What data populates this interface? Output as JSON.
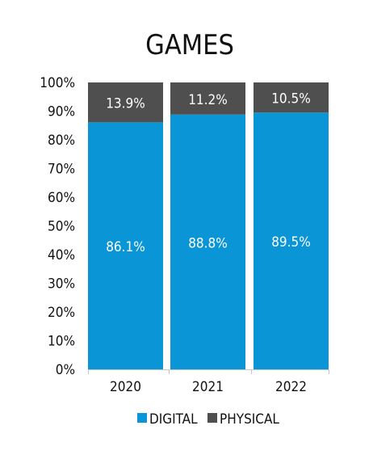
{
  "chart_data": {
    "type": "bar",
    "stacked": true,
    "title": "GAMES",
    "categories": [
      "2020",
      "2021",
      "2022"
    ],
    "series": [
      {
        "name": "DIGITAL",
        "color": "#0995d6",
        "values": [
          86.1,
          88.8,
          89.5
        ],
        "labels": [
          "86.1%",
          "88.8%",
          "89.5%"
        ]
      },
      {
        "name": "PHYSICAL",
        "color": "#4f4f4f",
        "values": [
          13.9,
          11.2,
          10.5
        ],
        "labels": [
          "13.9%",
          "11.2%",
          "10.5%"
        ]
      }
    ],
    "ylim": [
      0,
      100
    ],
    "yticks": [
      "0%",
      "10%",
      "20%",
      "30%",
      "40%",
      "50%",
      "60%",
      "70%",
      "80%",
      "90%",
      "100%"
    ],
    "grid": false,
    "legend": "bottom"
  }
}
